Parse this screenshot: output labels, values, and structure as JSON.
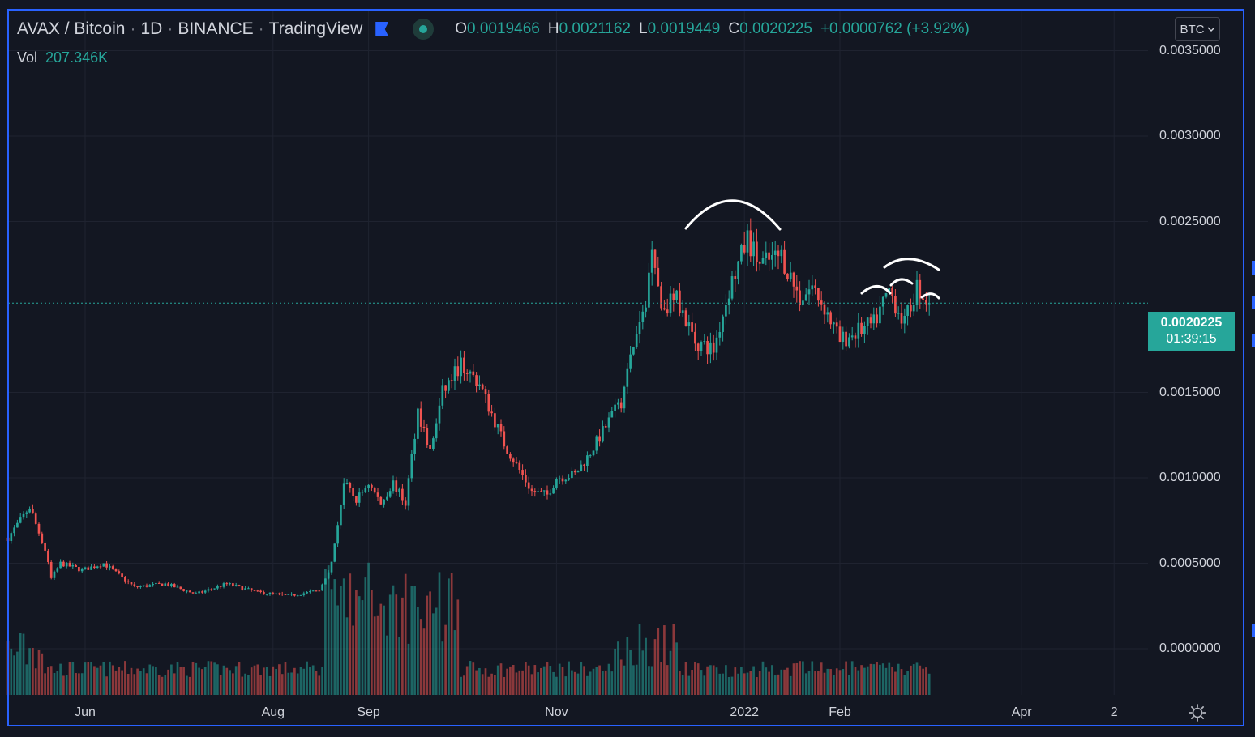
{
  "legend": {
    "symbol": "AVAX / Bitcoin",
    "interval": "1D",
    "exchange": "BINANCE",
    "source": "TradingView",
    "separator": "·",
    "ohlc": {
      "o_key": "O",
      "o": "0.0019466",
      "h_key": "H",
      "h": "0.0021162",
      "l_key": "L",
      "l": "0.0019449",
      "c_key": "C",
      "c": "0.0020225",
      "change": "+0.0000762 (+3.92%)"
    },
    "volume_key": "Vol",
    "volume": "207.346K"
  },
  "currency_button": "BTC",
  "last_price": {
    "price": "0.0020225",
    "countdown": "01:39:15"
  },
  "colors": {
    "up": "#26a69a",
    "down": "#ef5350",
    "accent": "#2962ff",
    "background": "#131722"
  },
  "chart_data": {
    "type": "candlestick",
    "y_axis_ticks": [
      "0.0035000",
      "0.0030000",
      "0.0025000",
      "0.0015000",
      "0.0010000",
      "0.0005000",
      "0.0000000"
    ],
    "y_tick_values": [
      0.0035,
      0.003,
      0.0025,
      0.0015,
      0.001,
      0.0005,
      0.0
    ],
    "x_axis_ticks": [
      "Jun",
      "Aug",
      "Sep",
      "Nov",
      "2022",
      "Feb",
      "Apr",
      "2"
    ],
    "x_tick_dates": [
      "2021-06-01",
      "2021-08-01",
      "2021-09-01",
      "2021-11-01",
      "2022-01-01",
      "2022-02-01",
      "2022-04-01",
      "2022-05-01"
    ],
    "x_range": [
      "2021-05-07",
      "2022-05-12"
    ],
    "y_range": [
      -0.00027,
      0.00373
    ],
    "last_close": 0.0020225,
    "annotations": "hand-drawn white arcs above price peaks",
    "price_path": [
      [
        "2021-05-07",
        0.00065
      ],
      [
        "2021-05-14",
        0.00083
      ],
      [
        "2021-05-19",
        0.00058
      ],
      [
        "2021-05-21",
        0.00041
      ],
      [
        "2021-05-24",
        0.0005
      ],
      [
        "2021-05-31",
        0.00046
      ],
      [
        "2021-06-07",
        0.0005
      ],
      [
        "2021-06-17",
        0.00036
      ],
      [
        "2021-06-27",
        0.00038
      ],
      [
        "2021-07-07",
        0.00032
      ],
      [
        "2021-07-17",
        0.00038
      ],
      [
        "2021-07-27",
        0.00033
      ],
      [
        "2021-08-06",
        0.00031
      ],
      [
        "2021-08-16",
        0.00034
      ],
      [
        "2021-08-20",
        0.0005
      ],
      [
        "2021-08-24",
        0.00097
      ],
      [
        "2021-08-28",
        0.00087
      ],
      [
        "2021-09-01",
        0.00097
      ],
      [
        "2021-09-05",
        0.00085
      ],
      [
        "2021-09-09",
        0.00097
      ],
      [
        "2021-09-13",
        0.00085
      ],
      [
        "2021-09-17",
        0.0014
      ],
      [
        "2021-09-21",
        0.00115
      ],
      [
        "2021-09-25",
        0.0015
      ],
      [
        "2021-10-01",
        0.00167
      ],
      [
        "2021-10-07",
        0.00155
      ],
      [
        "2021-10-15",
        0.0012
      ],
      [
        "2021-10-24",
        0.00092
      ],
      [
        "2021-10-29",
        0.0009
      ],
      [
        "2021-11-01",
        0.001
      ],
      [
        "2021-11-07",
        0.00102
      ],
      [
        "2021-11-11",
        0.00112
      ],
      [
        "2021-11-17",
        0.0013
      ],
      [
        "2021-11-22",
        0.00145
      ],
      [
        "2021-11-26",
        0.00178
      ],
      [
        "2021-11-30",
        0.002
      ],
      [
        "2021-12-02",
        0.0024
      ],
      [
        "2021-12-05",
        0.002
      ],
      [
        "2021-12-10",
        0.00205
      ],
      [
        "2021-12-16",
        0.0018
      ],
      [
        "2021-12-22",
        0.00175
      ],
      [
        "2021-12-27",
        0.0021
      ],
      [
        "2022-01-02",
        0.0024
      ],
      [
        "2022-01-06",
        0.00225
      ],
      [
        "2022-01-13",
        0.0023
      ],
      [
        "2022-01-19",
        0.00205
      ],
      [
        "2022-01-23",
        0.00212
      ],
      [
        "2022-01-27",
        0.002
      ],
      [
        "2022-02-01",
        0.0018
      ],
      [
        "2022-02-06",
        0.00185
      ],
      [
        "2022-02-12",
        0.0019
      ],
      [
        "2022-02-17",
        0.0021
      ],
      [
        "2022-02-22",
        0.0019
      ],
      [
        "2022-02-26",
        0.00212
      ],
      [
        "2022-03-02",
        0.00202
      ]
    ]
  }
}
